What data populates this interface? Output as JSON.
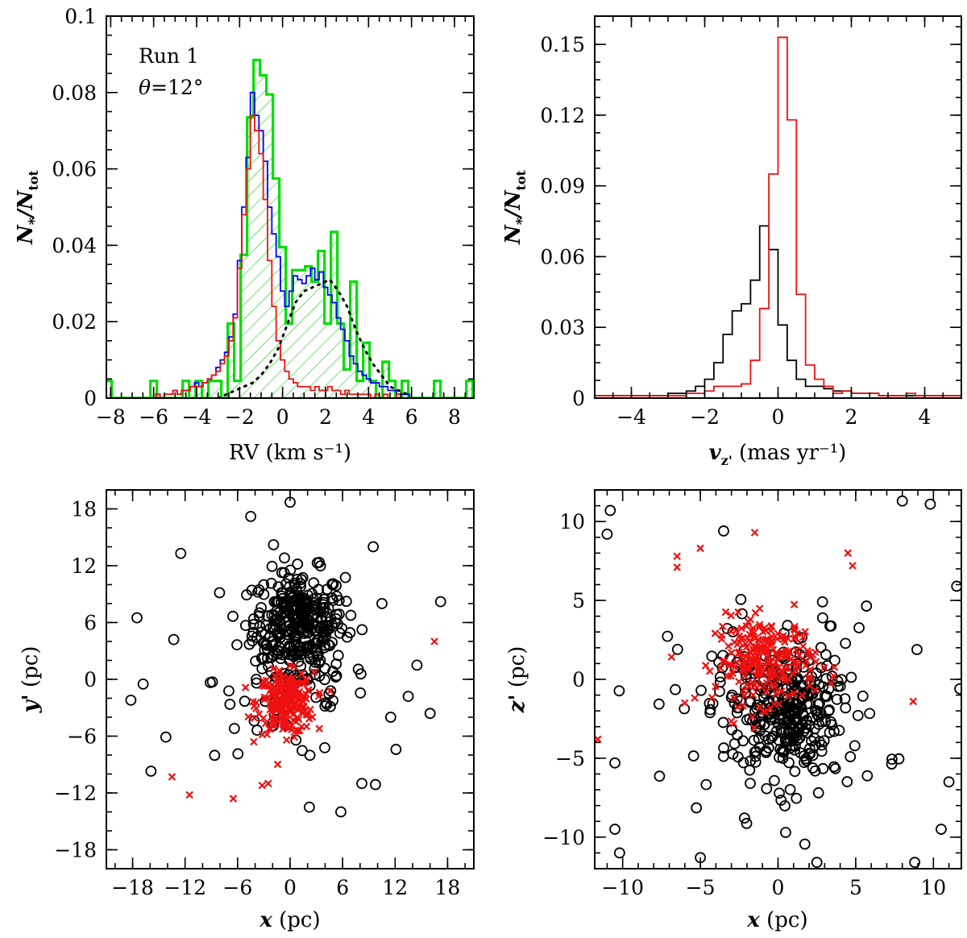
{
  "chart_data": [
    {
      "id": "rv",
      "type": "histogram",
      "xlabel": "RV (km s⁻¹)",
      "ylabel": "N*/Ntot",
      "ylabel_main": "N",
      "ylabel_sub1": "*",
      "ylabel_mid": "/N",
      "ylabel_sub2": "tot",
      "xlim": [
        -8.2,
        8.9
      ],
      "ylim": [
        0,
        0.1
      ],
      "xticks": [
        -8,
        -6,
        -4,
        -2,
        0,
        2,
        4,
        6,
        8
      ],
      "xtick_labels": [
        "−8",
        "−6",
        "−4",
        "−2",
        "0",
        "2",
        "4",
        "6",
        "8"
      ],
      "yticks": [
        0,
        0.02,
        0.04,
        0.06,
        0.08,
        0.1
      ],
      "ytick_labels": [
        "0",
        "0.02",
        "0.04",
        "0.06",
        "0.08",
        "0.1"
      ],
      "annotations": {
        "run": "Run 1",
        "theta_symbol": "θ",
        "theta_value": "=12°"
      },
      "series": [
        {
          "name": "green (hatched)",
          "color": "#00dd00",
          "bin_width": 0.3,
          "x": [
            -8.1,
            -7.8,
            -7.5,
            -7.2,
            -6.9,
            -6.6,
            -6.3,
            -6.0,
            -5.7,
            -5.4,
            -5.1,
            -4.8,
            -4.5,
            -4.2,
            -3.9,
            -3.6,
            -3.3,
            -3.0,
            -2.7,
            -2.4,
            -2.1,
            -1.8,
            -1.5,
            -1.2,
            -0.9,
            -0.6,
            -0.3,
            0.0,
            0.3,
            0.6,
            0.9,
            1.2,
            1.5,
            1.8,
            2.1,
            2.4,
            2.7,
            3.0,
            3.3,
            3.6,
            3.9,
            4.2,
            4.5,
            4.8,
            5.1,
            5.4,
            5.7,
            6.0,
            6.3,
            6.6,
            6.9,
            7.2,
            7.5,
            7.8,
            8.1,
            8.4,
            8.7
          ],
          "values": [
            0.0045,
            0,
            0,
            0,
            0,
            0,
            0,
            0.0045,
            0,
            0,
            0,
            0,
            0.0045,
            0,
            0.0045,
            0,
            0.0045,
            0.0045,
            0,
            0.0195,
            0.0045,
            0.0375,
            0.0735,
            0.0885,
            0.0845,
            0.0795,
            0.0575,
            0.0395,
            0.0195,
            0.0335,
            0.0335,
            0.0345,
            0.0305,
            0.0385,
            0.0195,
            0.0435,
            0.0195,
            0.0075,
            0.0305,
            0.0045,
            0.0145,
            0.0045,
            0,
            0.0095,
            0.0045,
            0,
            0.0045,
            0,
            0,
            0,
            0,
            0.0045,
            0,
            0,
            0,
            0,
            0.0045
          ]
        },
        {
          "name": "blue",
          "color": "#0000ff",
          "bin_width": 0.2,
          "x": [
            -6.0,
            -5.8,
            -5.6,
            -5.4,
            -5.2,
            -5.0,
            -4.8,
            -4.6,
            -4.4,
            -4.2,
            -4.0,
            -3.8,
            -3.6,
            -3.4,
            -3.2,
            -3.0,
            -2.8,
            -2.6,
            -2.4,
            -2.2,
            -2.0,
            -1.8,
            -1.6,
            -1.4,
            -1.2,
            -1.0,
            -0.8,
            -0.6,
            -0.4,
            -0.2,
            0.0,
            0.2,
            0.4,
            0.6,
            0.8,
            1.0,
            1.2,
            1.4,
            1.6,
            1.8,
            2.0,
            2.2,
            2.4,
            2.6,
            2.8,
            3.0,
            3.2,
            3.4,
            3.6,
            3.8,
            4.0,
            4.2,
            4.4,
            4.6,
            4.8,
            5.0,
            5.2,
            5.4,
            5.6,
            5.8,
            6.0
          ],
          "values": [
            0,
            0.001,
            0,
            0.001,
            0.001,
            0.002,
            0.001,
            0.002,
            0.002,
            0.003,
            0.004,
            0.003,
            0.004,
            0.005,
            0.006,
            0.008,
            0.01,
            0.012,
            0.016,
            0.022,
            0.036,
            0.05,
            0.063,
            0.08,
            0.074,
            0.07,
            0.062,
            0.05,
            0.043,
            0.037,
            0.028,
            0.024,
            0.028,
            0.032,
            0.031,
            0.03,
            0.032,
            0.034,
            0.031,
            0.033,
            0.029,
            0.027,
            0.025,
            0.021,
            0.018,
            0.015,
            0.011,
            0.009,
            0.007,
            0.006,
            0.005,
            0.004,
            0.004,
            0.003,
            0.003,
            0.002,
            0.002,
            0.001,
            0.001,
            0.001,
            0
          ]
        },
        {
          "name": "red",
          "color": "#ee1111",
          "bin_width": 0.2,
          "x": [
            -6.0,
            -5.8,
            -5.6,
            -5.4,
            -5.2,
            -5.0,
            -4.8,
            -4.6,
            -4.4,
            -4.2,
            -4.0,
            -3.8,
            -3.6,
            -3.4,
            -3.2,
            -3.0,
            -2.8,
            -2.6,
            -2.4,
            -2.2,
            -2.0,
            -1.8,
            -1.6,
            -1.4,
            -1.2,
            -1.0,
            -0.8,
            -0.6,
            -0.4,
            -0.2,
            0.0,
            0.2,
            0.4,
            0.6,
            0.8,
            1.0,
            1.2,
            1.4,
            1.6,
            1.8,
            2.0,
            2.2,
            2.4,
            2.6,
            2.8,
            3.0,
            3.2,
            3.4,
            3.6,
            3.8,
            4.0,
            4.2,
            4.4,
            4.6,
            4.8,
            5.0,
            5.2,
            5.4,
            5.6,
            5.8,
            6.0
          ],
          "values": [
            0,
            0.001,
            0,
            0.001,
            0.001,
            0.002,
            0.001,
            0.002,
            0.002,
            0.003,
            0.003,
            0.003,
            0.004,
            0.005,
            0.006,
            0.007,
            0.009,
            0.011,
            0.015,
            0.021,
            0.034,
            0.048,
            0.06,
            0.074,
            0.07,
            0.064,
            0.052,
            0.036,
            0.024,
            0.015,
            0.01,
            0.007,
            0.005,
            0.004,
            0.003,
            0.003,
            0.003,
            0.002,
            0.003,
            0.002,
            0.002,
            0.003,
            0.002,
            0.002,
            0.001,
            0.002,
            0.001,
            0.001,
            0.001,
            0.001,
            0.001,
            0,
            0.001,
            0,
            0.001,
            0,
            0,
            0.001,
            0,
            0,
            0
          ]
        },
        {
          "name": "black dotted",
          "color": "#000000",
          "style": "dotted",
          "x": [
            -3.0,
            -2.6,
            -2.2,
            -1.8,
            -1.4,
            -1.0,
            -0.6,
            -0.2,
            0.2,
            0.6,
            1.0,
            1.4,
            1.8,
            2.2,
            2.6,
            3.0,
            3.4,
            3.8,
            4.2,
            4.6,
            5.0,
            5.4,
            5.8
          ],
          "values": [
            0,
            0.001,
            0.002,
            0.003,
            0.004,
            0.006,
            0.009,
            0.013,
            0.019,
            0.025,
            0.028,
            0.029,
            0.03,
            0.031,
            0.028,
            0.024,
            0.018,
            0.013,
            0.009,
            0.006,
            0.003,
            0.002,
            0.001
          ]
        }
      ]
    },
    {
      "id": "vz",
      "type": "histogram",
      "xlabel": "v_z' (mas yr⁻¹)",
      "xlabel_main": "v",
      "xlabel_sub": "z'",
      "xlabel_rest": " (mas yr⁻¹)",
      "ylabel": "N*/Ntot",
      "ylabel_main": "N",
      "ylabel_sub1": "*",
      "ylabel_mid": "/N",
      "ylabel_sub2": "tot",
      "xlim": [
        -5,
        5
      ],
      "ylim": [
        0,
        0.162
      ],
      "xticks": [
        -4,
        -2,
        0,
        2,
        4
      ],
      "xtick_labels": [
        "−4",
        "−2",
        "0",
        "2",
        "4"
      ],
      "yticks": [
        0,
        0.03,
        0.06,
        0.09,
        0.12,
        0.15
      ],
      "ytick_labels": [
        "0",
        "0.03",
        "0.06",
        "0.09",
        "0.12",
        "0.15"
      ],
      "series": [
        {
          "name": "black",
          "color": "#000000",
          "bin_width": 0.25,
          "x": [
            -4.875,
            -4.625,
            -4.375,
            -4.125,
            -3.875,
            -3.625,
            -3.375,
            -3.125,
            -2.875,
            -2.625,
            -2.375,
            -2.125,
            -1.875,
            -1.625,
            -1.375,
            -1.125,
            -0.875,
            -0.625,
            -0.375,
            -0.125,
            0.125,
            0.375,
            0.625,
            0.875,
            1.125,
            1.375,
            1.625,
            1.875,
            2.125,
            2.375,
            2.625,
            2.875,
            3.125,
            3.375,
            3.625,
            3.875,
            4.125,
            4.375,
            4.625,
            4.875
          ],
          "values": [
            0.001,
            0.001,
            0.001,
            0.001,
            0.001,
            0.001,
            0.001,
            0.001,
            0.002,
            0.002,
            0.003,
            0.005,
            0.008,
            0.015,
            0.027,
            0.037,
            0.04,
            0.05,
            0.073,
            0.063,
            0.031,
            0.016,
            0.008,
            0.005,
            0.005,
            0.004,
            0.003,
            0.003,
            0.002,
            0.002,
            0.002,
            0.001,
            0.001,
            0.001,
            0.001,
            0.001,
            0.001,
            0.001,
            0.001,
            0.001
          ]
        },
        {
          "name": "red",
          "color": "#ee1111",
          "bin_width": 0.25,
          "x": [
            -4.875,
            -4.625,
            -4.375,
            -4.125,
            -3.875,
            -3.625,
            -3.375,
            -3.125,
            -2.875,
            -2.625,
            -2.375,
            -2.125,
            -1.875,
            -1.625,
            -1.375,
            -1.125,
            -0.875,
            -0.625,
            -0.375,
            -0.125,
            0.125,
            0.375,
            0.625,
            0.875,
            1.125,
            1.375,
            1.625,
            1.875,
            2.125,
            2.375,
            2.625,
            2.875,
            3.125,
            3.375,
            3.625,
            3.875,
            4.125,
            4.375,
            4.625,
            4.875
          ],
          "values": [
            0.001,
            0.001,
            0.001,
            0.001,
            0.001,
            0.001,
            0.001,
            0.001,
            0.001,
            0.001,
            0.002,
            0.002,
            0.003,
            0.005,
            0.005,
            0.005,
            0.006,
            0.016,
            0.038,
            0.095,
            0.153,
            0.118,
            0.044,
            0.014,
            0.008,
            0.005,
            0.002,
            0.003,
            0.002,
            0.002,
            0.002,
            0.001,
            0.001,
            0.001,
            0.002,
            0.001,
            0.001,
            0.001,
            0.001,
            0.001
          ]
        }
      ]
    },
    {
      "id": "xy",
      "type": "scatter",
      "xlabel": "x (pc)",
      "xlabel_main": "x",
      "xlabel_rest": " (pc)",
      "ylabel": "y' (pc)",
      "ylabel_main": "y'",
      "ylabel_rest": " (pc)",
      "xlim": [
        -21,
        21
      ],
      "ylim": [
        -20,
        20
      ],
      "xticks": [
        -18,
        -12,
        -6,
        0,
        6,
        12,
        18
      ],
      "xtick_labels": [
        "−18",
        "−12",
        "−6",
        "0",
        "6",
        "12",
        "18"
      ],
      "yticks": [
        -18,
        -12,
        -6,
        0,
        6,
        12,
        18
      ],
      "ytick_labels": [
        "−18",
        "−12",
        "−6",
        "0",
        "6",
        "12",
        "18"
      ],
      "series": [
        {
          "name": "black circles",
          "marker": "circle",
          "color": "#000000",
          "clusters": [
            {
              "cx": 1.0,
              "cy": 6.0,
              "sx": 4.2,
              "sy": 4.4,
              "n": 300
            },
            {
              "cx": 0.0,
              "cy": 0.0,
              "sx": 7.0,
              "sy": 7.0,
              "n": 90
            }
          ],
          "points": [
            [
              -17.5,
              6.5
            ],
            [
              -18.2,
              -2.2
            ],
            [
              -15.9,
              -9.7
            ],
            [
              -14.2,
              -6.1
            ],
            [
              -13.3,
              4.2
            ],
            [
              -12.5,
              13.3
            ],
            [
              17.2,
              8.2
            ],
            [
              16.0,
              -3.6
            ],
            [
              13.5,
              -1.8
            ],
            [
              12.1,
              -7.4
            ],
            [
              10.5,
              8.0
            ],
            [
              2.2,
              -13.5
            ],
            [
              5.8,
              -14.0
            ],
            [
              8.2,
              -11.0
            ],
            [
              0.0,
              18.7
            ],
            [
              -4.5,
              17.2
            ],
            [
              11.5,
              -4.0
            ],
            [
              14.5,
              1.5
            ],
            [
              -16.8,
              -0.5
            ],
            [
              9.5,
              14.0
            ]
          ]
        },
        {
          "name": "red crosses",
          "marker": "x",
          "color": "#ee1111",
          "clusters": [
            {
              "cx": -0.5,
              "cy": -2.5,
              "sx": 2.6,
              "sy": 2.6,
              "n": 230
            }
          ],
          "points": [
            [
              16.5,
              4.0
            ],
            [
              -13.5,
              -10.3
            ],
            [
              -11.5,
              -12.2
            ],
            [
              -6.5,
              -12.6
            ],
            [
              -3.2,
              -11.2
            ],
            [
              -2.5,
              -11.0
            ]
          ]
        }
      ]
    },
    {
      "id": "xz",
      "type": "scatter",
      "xlabel": "x (pc)",
      "xlabel_main": "x",
      "xlabel_rest": " (pc)",
      "ylabel": "z' (pc)",
      "ylabel_main": "z'",
      "ylabel_rest": " (pc)",
      "xlim": [
        -11.8,
        11.8
      ],
      "ylim": [
        -12,
        12
      ],
      "xticks": [
        -10,
        -5,
        0,
        5,
        10
      ],
      "xtick_labels": [
        "−10",
        "−5",
        "0",
        "5",
        "10"
      ],
      "yticks": [
        -10,
        -5,
        0,
        5,
        10
      ],
      "ytick_labels": [
        "−10",
        "−5",
        "0",
        "5",
        "10"
      ],
      "series": [
        {
          "name": "black circles",
          "marker": "circle",
          "color": "#000000",
          "clusters": [
            {
              "cx": 0.5,
              "cy": -2.0,
              "sx": 2.6,
              "sy": 3.2,
              "n": 230
            },
            {
              "cx": 0.0,
              "cy": -2.0,
              "sx": 5.5,
              "sy": 5.2,
              "n": 140
            }
          ],
          "points": [
            [
              -10.8,
              10.7
            ],
            [
              -11.0,
              9.2
            ],
            [
              8.0,
              11.3
            ],
            [
              9.8,
              11.1
            ],
            [
              11.5,
              5.9
            ],
            [
              11.7,
              -0.6
            ],
            [
              11.0,
              -6.5
            ],
            [
              -10.5,
              -5.3
            ],
            [
              -10.5,
              -9.5
            ],
            [
              -10.2,
              -11.0
            ],
            [
              -5.0,
              -11.3
            ],
            [
              8.8,
              -11.6
            ],
            [
              10.5,
              -9.5
            ],
            [
              2.5,
              -11.6
            ],
            [
              -3.5,
              9.4
            ]
          ]
        },
        {
          "name": "red crosses",
          "marker": "x",
          "color": "#ee1111",
          "clusters": [
            {
              "cx": -0.8,
              "cy": 1.2,
              "sx": 2.6,
              "sy": 2.2,
              "n": 240
            }
          ],
          "points": [
            [
              -6.5,
              7.8
            ],
            [
              -6.5,
              7.1
            ],
            [
              -5.0,
              8.3
            ],
            [
              -1.5,
              9.3
            ],
            [
              4.5,
              8.0
            ],
            [
              4.8,
              7.2
            ],
            [
              -11.6,
              -3.8
            ],
            [
              8.7,
              -1.4
            ],
            [
              -6.0,
              -1.5
            ]
          ]
        }
      ]
    }
  ]
}
